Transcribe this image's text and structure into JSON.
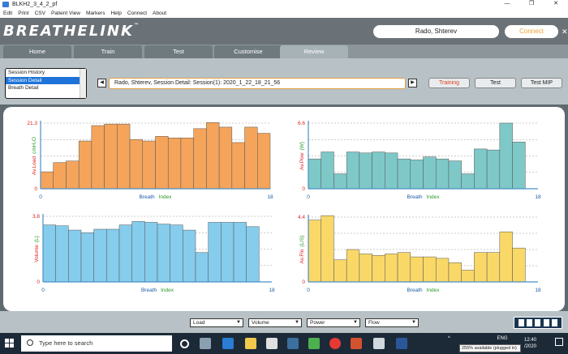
{
  "window": {
    "title": "BLKH2_3_4_2_pf",
    "buttons": [
      "—",
      "❐",
      "✕"
    ]
  },
  "menu": [
    "Edit",
    "Print",
    "CSV",
    "Patient View",
    "Markers",
    "Help",
    "Connect",
    "About"
  ],
  "header": {
    "logo": "BREATHELINK",
    "logo_tm": "™",
    "patient": "Rado, Shterev",
    "connect_label": "Connect",
    "close": "✕"
  },
  "tabs": [
    {
      "label": "Home",
      "active": false
    },
    {
      "label": "Train",
      "active": false
    },
    {
      "label": "Test",
      "active": false
    },
    {
      "label": "Customise",
      "active": false
    },
    {
      "label": "Review",
      "active": true
    }
  ],
  "controls": {
    "list_items": [
      "Session History",
      "Session Detail",
      "Breath Detail"
    ],
    "selected_index": 1,
    "prev": "◀",
    "next": "▶",
    "session_text": "Rado, Shterev, Session Detail: Session(1): 2020_1_22_18_21_56",
    "mode_buttons": [
      "Training",
      "Test",
      "Test MIP"
    ],
    "active_mode": "Training"
  },
  "chart_data": [
    {
      "type": "bar",
      "ylabel_parts": [
        "Av.Load",
        "cmH₂O"
      ],
      "ymax_label": "21.3",
      "ymin_label": "0",
      "ylim": [
        0,
        21.3
      ],
      "xlabel_parts": [
        "Breath",
        "Index"
      ],
      "xmin_label": "0",
      "xmax_label": "18",
      "color": "#f5a45b",
      "values": [
        5.5,
        8.5,
        9.0,
        15.5,
        20.5,
        21.0,
        21.0,
        16.0,
        15.5,
        17.0,
        16.5,
        16.5,
        19.5,
        21.5,
        20.0,
        15.0,
        20.0,
        18.0
      ]
    },
    {
      "type": "bar",
      "ylabel_parts": [
        "Av.Pow",
        "(W)"
      ],
      "ymax_label": "6.6",
      "ymin_label": "0",
      "ylim": [
        0,
        6.6
      ],
      "xlabel_parts": [
        "Breath",
        "Index"
      ],
      "xmin_label": "0",
      "xmax_label": "18",
      "color": "#7ec8c8",
      "values": [
        3.0,
        3.7,
        1.5,
        3.7,
        3.6,
        3.7,
        3.6,
        3.0,
        2.9,
        3.2,
        3.0,
        2.8,
        1.5,
        4.0,
        3.9,
        6.6,
        4.7,
        0
      ]
    },
    {
      "type": "bar",
      "ylabel_parts": [
        "Volume",
        "(L)"
      ],
      "ymax_label": "3.8",
      "ymin_label": "0",
      "ylim": [
        0,
        3.8
      ],
      "xlabel_parts": [
        "Breath",
        "Index"
      ],
      "xmin_label": "0",
      "xmax_label": "18",
      "color": "#86ccec",
      "values": [
        3.3,
        3.25,
        3.0,
        2.85,
        3.05,
        3.05,
        3.3,
        3.5,
        3.45,
        3.35,
        3.3,
        3.0,
        1.7,
        3.45,
        3.45,
        3.45,
        3.2,
        0
      ]
    },
    {
      "type": "bar",
      "ylabel_parts": [
        "Av.Flo",
        "(L/S)"
      ],
      "ymax_label": "4.4",
      "ymin_label": "0",
      "ylim": [
        0,
        4.4
      ],
      "xlabel_parts": [
        "Breath",
        "Index"
      ],
      "xmin_label": "0",
      "xmax_label": "18",
      "color": "#f9d868",
      "values": [
        4.2,
        4.5,
        1.5,
        2.2,
        1.9,
        1.8,
        1.9,
        2.0,
        1.7,
        1.7,
        1.6,
        1.3,
        0.8,
        2.0,
        2.0,
        3.4,
        2.3,
        0
      ]
    }
  ],
  "bottom": {
    "dropdowns": [
      "Load",
      "Volume",
      "Power",
      "Flow"
    ]
  },
  "taskbar": {
    "search_placeholder": "Type here to search",
    "time": "12:40",
    "date": "/2020",
    "tray_text": "ENG",
    "tooltip": "255% available (plugged in)"
  }
}
